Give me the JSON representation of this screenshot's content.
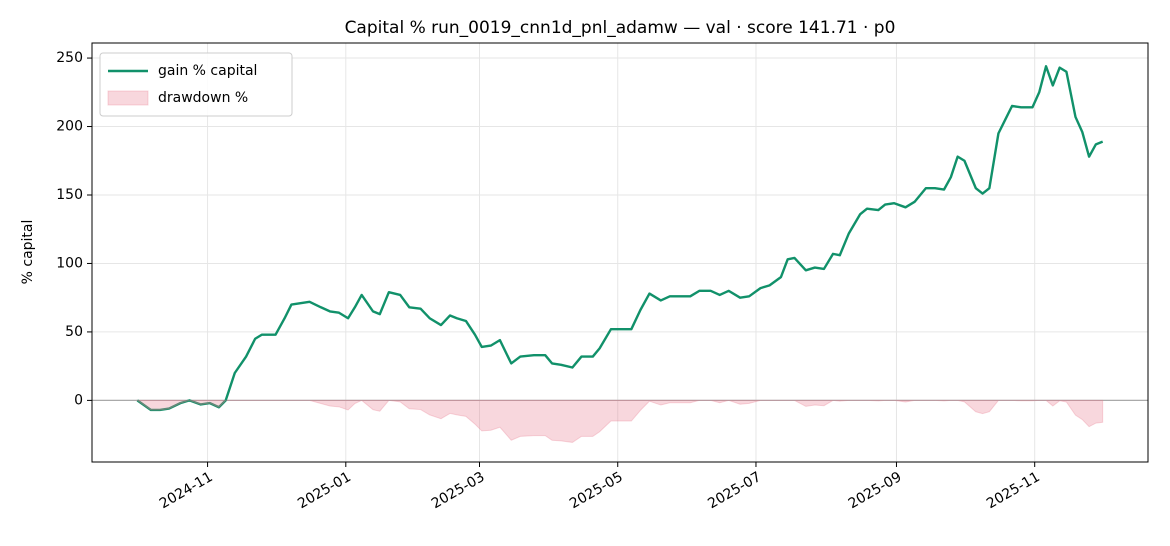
{
  "chart_data": {
    "type": "line",
    "title": "Capital % run_0019_cnn1d_pnl_adamw — val · score 141.71 · p0",
    "y_label": "% capital",
    "x": [
      19997,
      20003,
      20007,
      20011,
      20016,
      20020,
      20025,
      20029,
      20033,
      20036,
      20040,
      20045,
      20049,
      20052,
      20058,
      20062,
      20065,
      20069,
      20073,
      20078,
      20082,
      20086,
      20090,
      20093,
      20096,
      20101,
      20104,
      20108,
      20113,
      20117,
      20122,
      20126,
      20131,
      20135,
      20138,
      20142,
      20146,
      20149,
      20153,
      20157,
      20162,
      20166,
      20172,
      20177,
      20180,
      20184,
      20189,
      20193,
      20198,
      20201,
      20206,
      20212,
      20215,
      20219,
      20223,
      20228,
      20232,
      20236,
      20241,
      20245,
      20250,
      20254,
      20258,
      20263,
      20267,
      20272,
      20276,
      20281,
      20284,
      20287,
      20292,
      20296,
      20300,
      20304,
      20307,
      20311,
      20316,
      20319,
      20324,
      20327,
      20331,
      20336,
      20340,
      20345,
      20349,
      20353,
      20356,
      20359,
      20362,
      20367,
      20370,
      20373,
      20377,
      20380,
      20383,
      20387,
      20392,
      20395,
      20398,
      20401,
      20404,
      20407,
      20411,
      20414,
      20417,
      20420,
      20423
    ],
    "series": [
      {
        "name": "gain % capital",
        "color": "#11916a",
        "fill": false,
        "values": [
          0,
          -7,
          -7,
          -6,
          -2,
          0,
          -3,
          -2,
          -5,
          0,
          20,
          32,
          45,
          48,
          48,
          60,
          70,
          71,
          72,
          68,
          65,
          64,
          60,
          68,
          77,
          65,
          63,
          79,
          77,
          68,
          67,
          60,
          55,
          62,
          60,
          58,
          48,
          39,
          40,
          44,
          27,
          32,
          33,
          33,
          27,
          26,
          24,
          32,
          32,
          38,
          52,
          52,
          52,
          66,
          78,
          73,
          76,
          76,
          76,
          80,
          80,
          77,
          80,
          75,
          76,
          82,
          84,
          90,
          103,
          104,
          95,
          97,
          96,
          107,
          106,
          122,
          136,
          140,
          139,
          143,
          144,
          141,
          145,
          155,
          155,
          154,
          163,
          178,
          175,
          155,
          151,
          155,
          195,
          205,
          215,
          214,
          214,
          225,
          244,
          230,
          243,
          240,
          207,
          196,
          178,
          187,
          189
        ]
      },
      {
        "name": "drawdown %",
        "color": "#e8798f",
        "fill": true,
        "values": [
          0,
          -7,
          -7,
          -6,
          -2,
          0,
          -3,
          -2,
          -5,
          0,
          0,
          0,
          0,
          0,
          0,
          0,
          0,
          0,
          0,
          -2.3,
          -4.1,
          -4.7,
          -7.0,
          -2.3,
          0,
          -6.8,
          -7.9,
          0,
          -1.1,
          -6.1,
          -6.7,
          -10.6,
          -13.4,
          -9.5,
          -10.6,
          -11.7,
          -17.3,
          -22.3,
          -21.8,
          -19.6,
          -29.1,
          -26.3,
          -25.7,
          -25.7,
          -29.1,
          -29.6,
          -30.7,
          -26.3,
          -26.3,
          -22.9,
          -15.1,
          -15.1,
          -15.1,
          -7.3,
          -0.6,
          -3.4,
          -1.7,
          -1.7,
          -1.7,
          0,
          0,
          -1.7,
          0,
          -2.8,
          -2.2,
          0,
          0,
          0,
          0,
          0,
          -4.4,
          -3.4,
          -3.9,
          0,
          -0.5,
          0,
          0,
          0,
          -0.4,
          0,
          0,
          -1.2,
          0,
          0,
          0,
          -0.4,
          0,
          0,
          -1.1,
          -8.3,
          -9.7,
          -8.3,
          0,
          0,
          0,
          -0.3,
          -0.3,
          0,
          0,
          -4.1,
          -0.3,
          -1.2,
          -10.8,
          -14.0,
          -19.2,
          -16.6,
          -16.0
        ]
      }
    ],
    "xlim": [
      19977,
      20443
    ],
    "xticks": [
      {
        "value": 20028,
        "label": "2024-11"
      },
      {
        "value": 20089,
        "label": "2025-01"
      },
      {
        "value": 20148,
        "label": "2025-03"
      },
      {
        "value": 20209,
        "label": "2025-05"
      },
      {
        "value": 20270,
        "label": "2025-07"
      },
      {
        "value": 20332,
        "label": "2025-09"
      },
      {
        "value": 20393,
        "label": "2025-11"
      }
    ],
    "ylim": [
      -45,
      261
    ],
    "yticks": [
      0,
      50,
      100,
      150,
      200,
      250
    ],
    "hline": 0,
    "grid": true,
    "legend": "upper left"
  }
}
